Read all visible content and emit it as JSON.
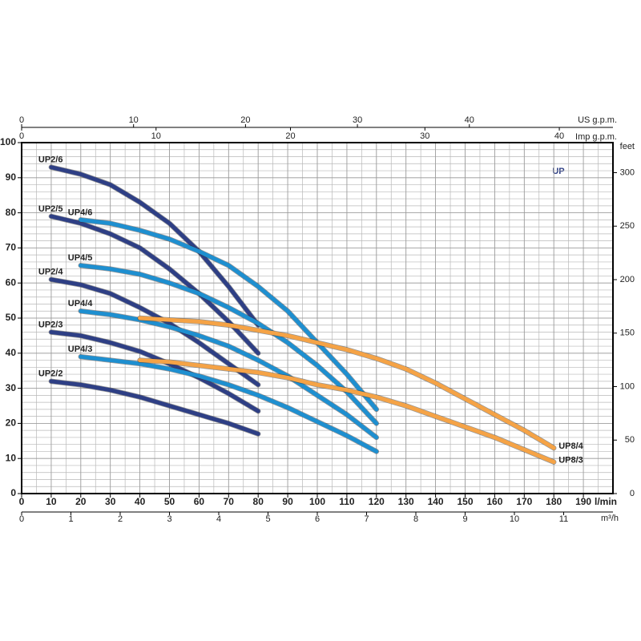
{
  "chart_data": {
    "type": "line",
    "logo": "UP",
    "x_label": "l/min",
    "xlim": [
      0,
      200
    ],
    "xticks": [
      0,
      10,
      20,
      30,
      40,
      50,
      60,
      70,
      80,
      90,
      100,
      110,
      120,
      130,
      140,
      150,
      160,
      170,
      180,
      190
    ],
    "ylim": [
      0,
      100
    ],
    "yticks": [
      0,
      10,
      20,
      30,
      40,
      50,
      60,
      70,
      80,
      90,
      100
    ],
    "y2_label": "feet",
    "y2lim": [
      0,
      328.08
    ],
    "y2ticks": [
      0,
      50,
      100,
      150,
      200,
      250,
      300
    ],
    "top_axes": [
      {
        "label": "US g.p.m.",
        "xlim": [
          0,
          52.83
        ],
        "xticks": [
          0,
          10,
          20,
          30,
          40
        ]
      },
      {
        "label": "Imp g.p.m.",
        "xlim": [
          0,
          43.99
        ],
        "xticks": [
          0,
          10,
          20,
          30,
          40
        ]
      }
    ],
    "bottom_axis2": {
      "label": "m³/h",
      "xlim": [
        0,
        12
      ],
      "xticks": [
        0,
        1,
        2,
        3,
        4,
        5,
        6,
        7,
        8,
        9,
        10,
        11
      ]
    },
    "grid": true,
    "series": [
      {
        "name": "UP2/6",
        "color": "#2e3f85",
        "x": [
          10,
          20,
          30,
          40,
          50,
          60,
          70,
          80
        ],
        "values": [
          93,
          91,
          88,
          83,
          77,
          69,
          59,
          48
        ]
      },
      {
        "name": "UP2/5",
        "color": "#2e3f85",
        "x": [
          10,
          20,
          30,
          40,
          50,
          60,
          70,
          80
        ],
        "values": [
          79,
          77,
          74,
          70,
          64,
          57,
          49,
          40
        ]
      },
      {
        "name": "UP2/4",
        "color": "#2e3f85",
        "x": [
          10,
          20,
          30,
          40,
          50,
          60,
          70,
          80
        ],
        "values": [
          61,
          59.5,
          57,
          53,
          48.5,
          43,
          37,
          31
        ]
      },
      {
        "name": "UP2/3",
        "color": "#2e3f85",
        "x": [
          10,
          20,
          30,
          40,
          50,
          60,
          70,
          80
        ],
        "values": [
          46,
          45,
          43,
          40.5,
          37,
          33,
          28.5,
          23.5
        ]
      },
      {
        "name": "UP2/2",
        "color": "#2e3f85",
        "x": [
          10,
          20,
          30,
          40,
          50,
          60,
          70,
          80
        ],
        "values": [
          32,
          31,
          29.5,
          27.5,
          25,
          22.5,
          20,
          17
        ]
      },
      {
        "name": "UP4/6",
        "color": "#1e8fd0",
        "x": [
          20,
          30,
          40,
          50,
          60,
          70,
          80,
          90,
          100,
          110,
          120
        ],
        "values": [
          78,
          77,
          75,
          72.5,
          69,
          65,
          59,
          52,
          43,
          34,
          24
        ]
      },
      {
        "name": "UP4/5",
        "color": "#1e8fd0",
        "x": [
          20,
          30,
          40,
          50,
          60,
          70,
          80,
          90,
          100,
          110,
          120
        ],
        "values": [
          65,
          64,
          62.5,
          60,
          57,
          53,
          48.5,
          43,
          36.5,
          29,
          20
        ]
      },
      {
        "name": "UP4/4",
        "color": "#1e8fd0",
        "x": [
          20,
          30,
          40,
          50,
          60,
          70,
          80,
          90,
          100,
          110,
          120
        ],
        "values": [
          52,
          51,
          49.5,
          47.5,
          45,
          42,
          38,
          33.5,
          28,
          22.5,
          16
        ]
      },
      {
        "name": "UP4/3",
        "color": "#1e8fd0",
        "x": [
          20,
          30,
          40,
          50,
          60,
          70,
          80,
          90,
          100,
          110,
          120
        ],
        "values": [
          39,
          38,
          37,
          35.5,
          33.5,
          31,
          28,
          24.5,
          20.5,
          16.5,
          12
        ]
      },
      {
        "name": "UP8/4",
        "color": "#f5a346",
        "x": [
          40,
          50,
          60,
          70,
          80,
          90,
          100,
          110,
          120,
          130,
          140,
          150,
          160,
          170,
          180
        ],
        "values": [
          50,
          49.5,
          49,
          48,
          46.5,
          45,
          43,
          41,
          38.5,
          35.5,
          31.5,
          27,
          22.5,
          18,
          13
        ]
      },
      {
        "name": "UP8/3",
        "color": "#f5a346",
        "x": [
          40,
          50,
          60,
          70,
          80,
          90,
          100,
          110,
          120,
          130,
          140,
          150,
          160,
          170,
          180
        ],
        "values": [
          38,
          37.5,
          36.5,
          35.5,
          34.5,
          33,
          31,
          29.5,
          27.5,
          25,
          22,
          19,
          16,
          12.5,
          9
        ]
      }
    ]
  }
}
